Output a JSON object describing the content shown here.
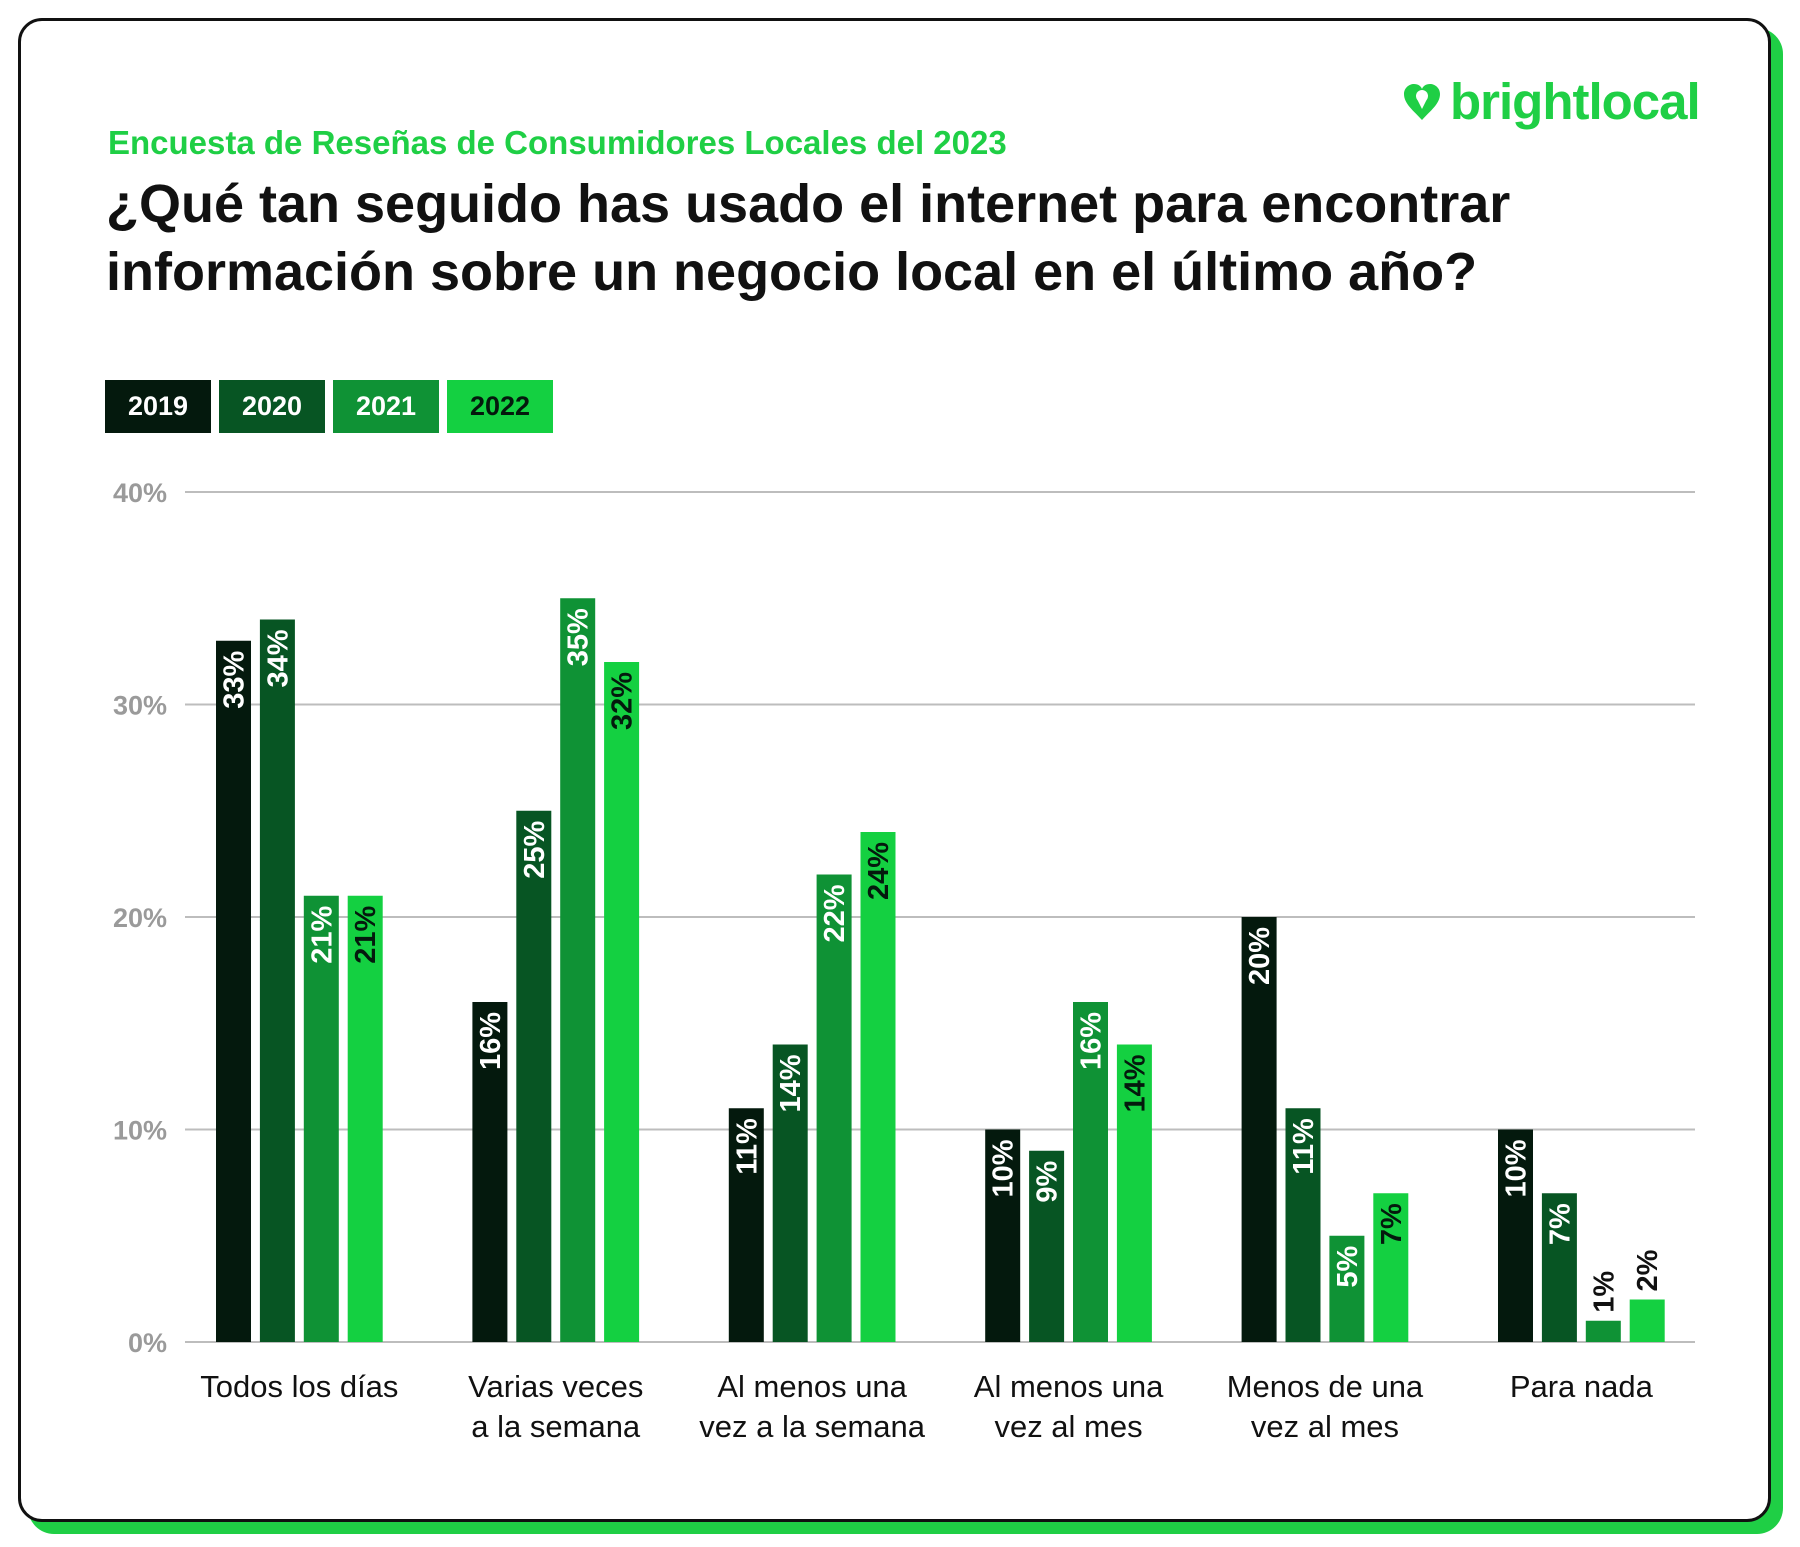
{
  "header": {
    "subtitle": "Encuesta de Reseñas de Consumidores Locales del 2023",
    "title": "¿Qué tan seguido has usado el internet para encontrar información sobre un negocio local en el último año?",
    "brand": "brightlocal"
  },
  "colors": {
    "series": [
      "#04190d",
      "#075523",
      "#0f9235",
      "#14d041"
    ],
    "label_text": [
      "#ffffff",
      "#ffffff",
      "#ffffff",
      "#04190d"
    ],
    "accent": "#1fcf45",
    "grid": "#bdbdbd",
    "axis_text": "#9a9a9a"
  },
  "chart_data": {
    "type": "bar",
    "categories": [
      [
        "Todos los días"
      ],
      [
        "Varias veces",
        "a la semana"
      ],
      [
        "Al menos una",
        "vez a la semana"
      ],
      [
        "Al menos una",
        "vez al mes"
      ],
      [
        "Menos de una",
        "vez al mes"
      ],
      [
        "Para nada"
      ]
    ],
    "series": [
      {
        "name": "2019",
        "values": [
          33,
          16,
          11,
          10,
          20,
          10
        ]
      },
      {
        "name": "2020",
        "values": [
          34,
          25,
          14,
          9,
          11,
          7
        ]
      },
      {
        "name": "2021",
        "values": [
          21,
          35,
          22,
          16,
          5,
          1
        ]
      },
      {
        "name": "2022",
        "values": [
          21,
          32,
          24,
          14,
          7,
          2
        ]
      }
    ],
    "data_labels": [
      [
        "33%",
        "16%",
        "11%",
        "10%",
        "20%",
        "10%"
      ],
      [
        "34%",
        "25%",
        "14%",
        "9%",
        "11%",
        "7%"
      ],
      [
        "21%",
        "35%",
        "22%",
        "16%",
        "5%",
        "1%"
      ],
      [
        "21%",
        "32%",
        "24%",
        "14%",
        "7%",
        "2%"
      ]
    ],
    "ylim": [
      0,
      40
    ],
    "yticks": [
      0,
      10,
      20,
      30,
      40
    ],
    "ytick_labels": [
      "0%",
      "10%",
      "20%",
      "30%",
      "40%"
    ],
    "grid": true,
    "legend": "top-left"
  }
}
